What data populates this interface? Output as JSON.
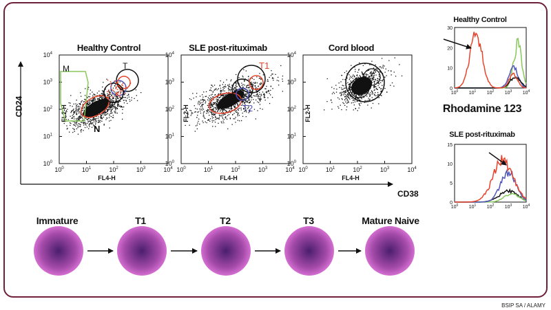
{
  "colors": {
    "frame": "#6d1f3c",
    "red": "#e8432a",
    "blue": "#4f55b8",
    "green": "#86c95a",
    "black": "#111111",
    "cell_center": "#4a1e6e",
    "cell_edge": "#d46fd2"
  },
  "scatter": {
    "y_axis_label": "CD24",
    "x_axis_label": "CD38",
    "panels": [
      {
        "title": "Healthy Control",
        "xlabel": "FL4-H",
        "ylabel": "FL2-H",
        "gates": [
          "M",
          "T",
          "N"
        ]
      },
      {
        "title": "SLE post-rituximab",
        "xlabel": "FL4-H",
        "ylabel": "FL2-H",
        "gates": [
          "T1",
          "T2"
        ]
      },
      {
        "title": "Cord blood",
        "xlabel": "FL4-H",
        "ylabel": "FL2-H",
        "gates": []
      }
    ],
    "tick_base": "10",
    "tick_exps": [
      "0",
      "1",
      "2",
      "3",
      "4"
    ]
  },
  "histograms": {
    "center_label": "Rhodamine 123",
    "panels": [
      {
        "title": "Healthy Control"
      },
      {
        "title": "SLE post-rituximab"
      }
    ],
    "y_ticks_top": [
      "0",
      "10",
      "20",
      "30"
    ],
    "y_ticks_bottom": [
      "0",
      "5",
      "10",
      "15"
    ]
  },
  "stages": [
    "Immature",
    "T1",
    "T2",
    "T3",
    "Mature Naive"
  ],
  "credit": "BSIP SA / ALAMY"
}
